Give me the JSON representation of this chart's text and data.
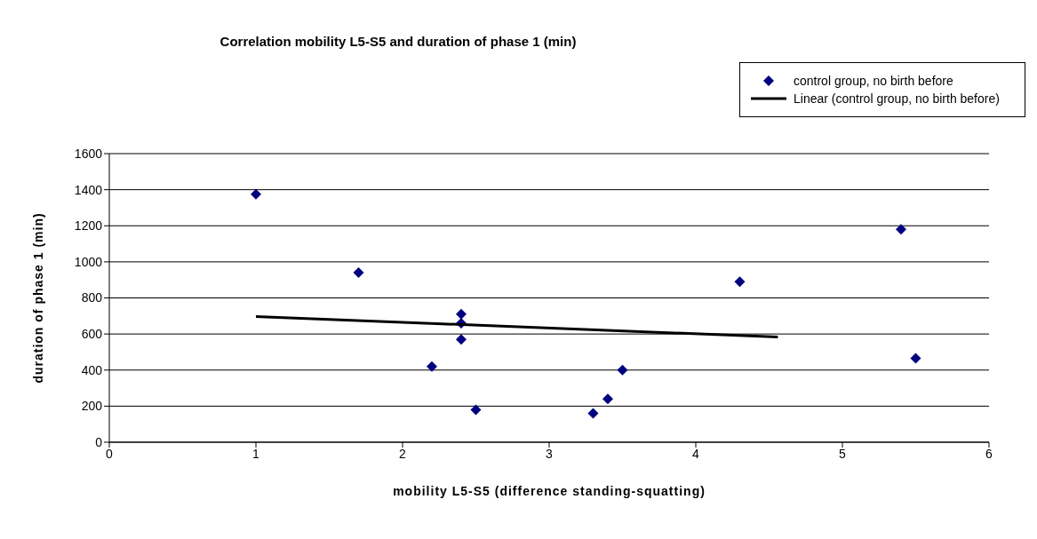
{
  "chart_data": {
    "type": "scatter",
    "title": "Correlation mobility L5-S5 and duration of phase 1 (min)",
    "xlabel": "mobility L5-S5 (difference standing-squatting)",
    "ylabel": "duration of phase 1 (min)",
    "xlim": [
      0,
      6
    ],
    "xticks": [
      0,
      1,
      2,
      3,
      4,
      5,
      6
    ],
    "ylim": [
      0,
      1600
    ],
    "yticks": [
      0,
      200,
      400,
      600,
      800,
      1000,
      1200,
      1400,
      1600
    ],
    "grid": "y",
    "legend": "top right",
    "marker": "diamond",
    "series": [
      {
        "name": "control group, no birth before",
        "color": "#000080",
        "x": [
          1.0,
          1.7,
          2.2,
          2.4,
          2.4,
          2.4,
          2.5,
          3.3,
          3.4,
          3.5,
          4.3,
          5.4,
          5.5
        ],
        "values": [
          1375,
          940,
          420,
          710,
          660,
          570,
          180,
          160,
          240,
          400,
          890,
          1180,
          465
        ]
      },
      {
        "name": "Linear (control group, no birth before)",
        "type": "line",
        "color": "#000000",
        "marker": "none",
        "x": [
          1,
          4.56
        ],
        "values": [
          697,
          583
        ]
      }
    ]
  }
}
